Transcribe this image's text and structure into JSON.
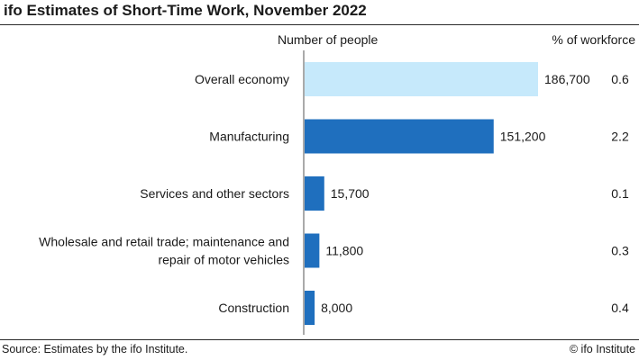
{
  "title": "ifo Estimates of Short-Time Work, November 2022",
  "column_headers": {
    "people": "Number of people",
    "workforce": "% of workforce"
  },
  "footer": {
    "source": "Source: Estimates by the ifo Institute.",
    "copyright": "© ifo Institute"
  },
  "colors": {
    "highlight_bar": "#c6e9fb",
    "bar": "#1f6fbe",
    "axis": "#555555"
  },
  "chart_data": {
    "type": "bar",
    "orientation": "horizontal",
    "title": "ifo Estimates of Short-Time Work, November 2022",
    "categories": [
      [
        "Overall economy"
      ],
      [
        "Manufacturing"
      ],
      [
        "Services and other sectors"
      ],
      [
        "Wholesale and retail trade; maintenance and",
        "repair of motor vehicles"
      ],
      [
        "Construction"
      ]
    ],
    "series": [
      {
        "name": "Number of people",
        "values": [
          186700,
          151200,
          15700,
          11800,
          8000
        ],
        "value_labels": [
          "186,700",
          "151,200",
          "15,700",
          "11,800",
          "8,000"
        ]
      },
      {
        "name": "% of workforce",
        "values": [
          0.6,
          2.2,
          0.1,
          0.3,
          0.4
        ],
        "value_labels": [
          "0.6",
          "2.2",
          "0.1",
          "0.3",
          "0.4"
        ]
      }
    ],
    "xlim": [
      0,
      186700
    ],
    "highlight_first_bar": true,
    "grid": false
  }
}
